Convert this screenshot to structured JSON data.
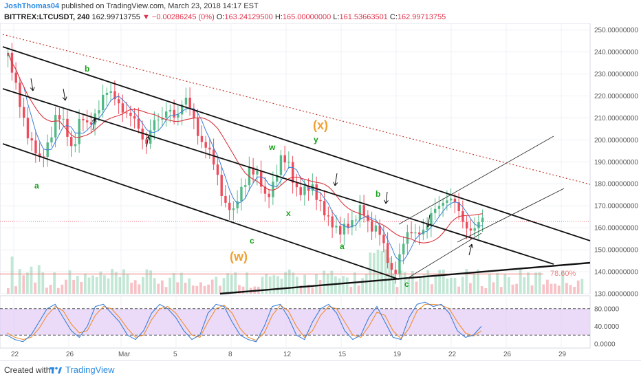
{
  "header": {
    "author": "JoshThomas04",
    "published_text": " published on TradingView.com, March 23, 2018 14:17 EST",
    "symbol": "BITTREX:LTCUSDT, 240",
    "last": "162.99713755",
    "change": "▼ −0.00286245 (0%)",
    "o_label": "O:",
    "o_value": "163.24129500",
    "h_label": "H:",
    "h_value": "165.00000000",
    "l_label": "L:",
    "l_value": "161.53663501",
    "c_label": "C:",
    "c_value": "162.99713755"
  },
  "footer": {
    "created_with": "Created with",
    "brand": "TradingView"
  },
  "colors": {
    "up": "#53b987",
    "down": "#eb4d5c",
    "ma_fast": "#3a7ed6",
    "ma_slow": "#d9363e",
    "stoch_k": "#3a7ed6",
    "stoch_d": "#f08c2f",
    "stoch_band": "#e4cff7",
    "wave_green": "#18a01a",
    "wave_orange": "#f0a030",
    "fib": "#f08080"
  },
  "chart_data": {
    "type": "candlestick",
    "price_axis": {
      "ticks": [
        "250.00000000",
        "240.00000000",
        "230.00000000",
        "220.00000000",
        "210.00000000",
        "200.00000000",
        "190.00000000",
        "180.00000000",
        "170.00000000",
        "160.00000000",
        "150.00000000",
        "140.00000000",
        "130.00000000"
      ],
      "range": [
        130,
        253
      ]
    },
    "time_axis": {
      "ticks": [
        "22",
        "26",
        "Mar",
        "5",
        "8",
        "12",
        "15",
        "19",
        "22",
        "26",
        "29"
      ]
    },
    "fib_label": "78.60%",
    "fib_level": 139,
    "current_price": 163,
    "wave_labels": {
      "a1": "a",
      "b1": "b",
      "c1": "c",
      "w": "(w)",
      "wave_w": "w",
      "x_small": "x",
      "y": "y",
      "x_big": "(x)",
      "a2": "a",
      "b2": "b",
      "c2": "c"
    },
    "price_series": [
      {
        "t": 0,
        "p": 238
      },
      {
        "t": 2,
        "p": 222
      },
      {
        "t": 4,
        "p": 210
      },
      {
        "t": 6,
        "p": 198
      },
      {
        "t": 8,
        "p": 188
      },
      {
        "t": 10,
        "p": 200
      },
      {
        "t": 12,
        "p": 212
      },
      {
        "t": 14,
        "p": 205
      },
      {
        "t": 16,
        "p": 196
      },
      {
        "t": 18,
        "p": 212
      },
      {
        "t": 20,
        "p": 203
      },
      {
        "t": 22,
        "p": 214
      },
      {
        "t": 24,
        "p": 223
      },
      {
        "t": 26,
        "p": 218
      },
      {
        "t": 28,
        "p": 216
      },
      {
        "t": 30,
        "p": 213
      },
      {
        "t": 32,
        "p": 205
      },
      {
        "t": 34,
        "p": 198
      },
      {
        "t": 36,
        "p": 210
      },
      {
        "t": 38,
        "p": 206
      },
      {
        "t": 40,
        "p": 216
      },
      {
        "t": 42,
        "p": 211
      },
      {
        "t": 44,
        "p": 217
      },
      {
        "t": 46,
        "p": 212
      },
      {
        "t": 48,
        "p": 200
      },
      {
        "t": 50,
        "p": 193
      },
      {
        "t": 52,
        "p": 185
      },
      {
        "t": 54,
        "p": 172
      },
      {
        "t": 56,
        "p": 165
      },
      {
        "t": 58,
        "p": 178
      },
      {
        "t": 60,
        "p": 188
      },
      {
        "t": 62,
        "p": 182
      },
      {
        "t": 64,
        "p": 174
      },
      {
        "t": 66,
        "p": 182
      },
      {
        "t": 68,
        "p": 190
      },
      {
        "t": 70,
        "p": 188
      },
      {
        "t": 72,
        "p": 178
      },
      {
        "t": 74,
        "p": 175
      },
      {
        "t": 76,
        "p": 178
      },
      {
        "t": 78,
        "p": 172
      },
      {
        "t": 80,
        "p": 160
      },
      {
        "t": 82,
        "p": 158
      },
      {
        "t": 84,
        "p": 164
      },
      {
        "t": 86,
        "p": 160
      },
      {
        "t": 88,
        "p": 170
      },
      {
        "t": 90,
        "p": 162
      },
      {
        "t": 92,
        "p": 158
      },
      {
        "t": 94,
        "p": 147
      },
      {
        "t": 96,
        "p": 140
      },
      {
        "t": 98,
        "p": 150
      },
      {
        "t": 100,
        "p": 158
      },
      {
        "t": 102,
        "p": 160
      },
      {
        "t": 104,
        "p": 158
      },
      {
        "t": 106,
        "p": 168
      },
      {
        "t": 108,
        "p": 174
      },
      {
        "t": 110,
        "p": 172
      },
      {
        "t": 112,
        "p": 167
      },
      {
        "t": 114,
        "p": 162
      },
      {
        "t": 116,
        "p": 158
      },
      {
        "t": 118,
        "p": 163
      }
    ],
    "stoch_axis": {
      "ticks": [
        "80.0000",
        "40.0000",
        "0.0000"
      ],
      "range": [
        0,
        100
      ],
      "band": [
        20,
        80
      ]
    },
    "stoch_k": [
      20,
      10,
      5,
      20,
      50,
      80,
      90,
      60,
      30,
      15,
      40,
      85,
      90,
      70,
      50,
      20,
      10,
      30,
      70,
      90,
      80,
      60,
      30,
      10,
      20,
      70,
      90,
      85,
      50,
      20,
      10,
      5,
      40,
      85,
      90,
      60,
      20,
      10,
      50,
      80,
      90,
      70,
      30,
      10,
      20,
      60,
      85,
      50,
      15,
      10,
      60,
      90,
      95,
      85,
      90,
      70,
      30,
      15,
      20,
      40
    ],
    "stoch_d": [
      25,
      15,
      10,
      15,
      35,
      65,
      85,
      75,
      45,
      25,
      30,
      65,
      85,
      80,
      60,
      35,
      15,
      20,
      55,
      80,
      85,
      70,
      45,
      20,
      15,
      50,
      80,
      88,
      70,
      35,
      15,
      8,
      25,
      65,
      88,
      75,
      40,
      15,
      30,
      65,
      85,
      80,
      50,
      20,
      15,
      40,
      72,
      65,
      30,
      12,
      35,
      75,
      90,
      90,
      88,
      80,
      50,
      25,
      18,
      30
    ]
  }
}
